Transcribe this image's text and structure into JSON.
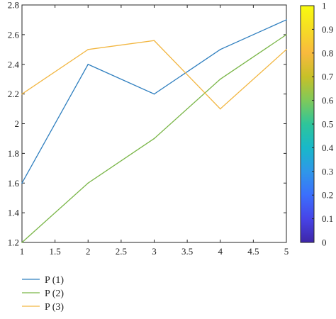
{
  "chart_data": {
    "type": "line",
    "x": [
      1,
      2,
      3,
      4,
      5
    ],
    "xlim": [
      1,
      5
    ],
    "ylim": [
      1.2,
      2.8
    ],
    "xticks": [
      "1",
      "1.5",
      "2",
      "2.5",
      "3",
      "3.5",
      "4",
      "4.5",
      "5"
    ],
    "yticks": [
      "1.2",
      "1.4",
      "1.6",
      "1.8",
      "2",
      "2.2",
      "2.4",
      "2.6",
      "2.8"
    ],
    "grid": false,
    "legend_position": "bottom-left",
    "series": [
      {
        "name": "P (1)",
        "values": [
          1.6,
          2.4,
          2.2,
          2.5,
          2.7
        ],
        "color": "#2f7fbf"
      },
      {
        "name": "P (2)",
        "values": [
          1.2,
          1.6,
          1.9,
          2.3,
          2.6
        ],
        "color": "#7ab648"
      },
      {
        "name": "P (3)",
        "values": [
          2.2,
          2.5,
          2.56,
          2.1,
          2.5
        ],
        "color": "#f2b640"
      }
    ],
    "colorbar": {
      "range": [
        0,
        1
      ],
      "ticks": [
        "0",
        "0.1",
        "0.2",
        "0.3",
        "0.4",
        "0.5",
        "0.6",
        "0.7",
        "0.8",
        "0.9",
        "1"
      ],
      "colormap": [
        "#3e26a8",
        "#4744e7",
        "#3b6ffd",
        "#2f97e9",
        "#18b8c9",
        "#2ec59a",
        "#7fc95a",
        "#c7c028",
        "#f8ba3e",
        "#f6dc25",
        "#f9fb0e"
      ]
    }
  }
}
